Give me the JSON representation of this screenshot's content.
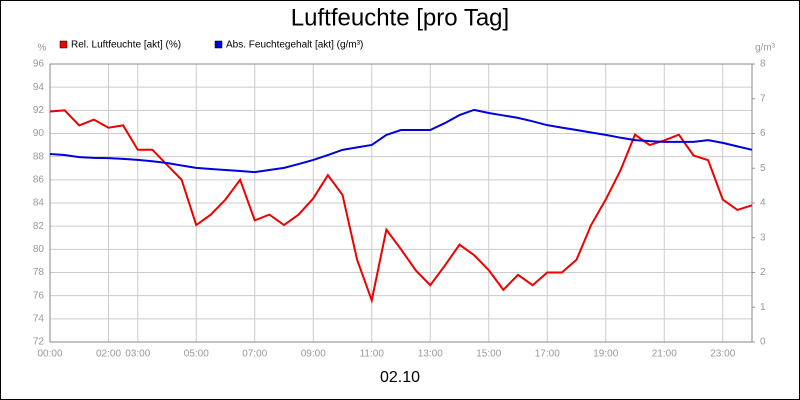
{
  "chart_data": {
    "type": "line",
    "title": "Luftfeuchte [pro Tag]",
    "xlabel": "02.10",
    "ylabel": "%",
    "y2label": "g/m³",
    "x": [
      0,
      0.5,
      1,
      1.5,
      2,
      2.5,
      3,
      3.5,
      4,
      4.5,
      5,
      5.5,
      6,
      6.5,
      7,
      7.5,
      8,
      8.5,
      9,
      9.5,
      10,
      10.5,
      11,
      11.5,
      12,
      12.5,
      13,
      13.5,
      14,
      14.5,
      15,
      15.5,
      16,
      16.5,
      17,
      17.5,
      18,
      18.5,
      19,
      19.5,
      20,
      20.5,
      21,
      21.5,
      22,
      22.5,
      23,
      23.5,
      24
    ],
    "xlim": [
      0,
      24
    ],
    "xticks": [
      {
        "value": 0,
        "label": "00:00"
      },
      {
        "value": 2,
        "label": "02:00"
      },
      {
        "value": 3,
        "label": "03:00"
      },
      {
        "value": 5,
        "label": "05:00"
      },
      {
        "value": 7,
        "label": "07:00"
      },
      {
        "value": 9,
        "label": "09:00"
      },
      {
        "value": 11,
        "label": "11:00"
      },
      {
        "value": 13,
        "label": "13:00"
      },
      {
        "value": 15,
        "label": "15:00"
      },
      {
        "value": 17,
        "label": "17:00"
      },
      {
        "value": 19,
        "label": "19:00"
      },
      {
        "value": 21,
        "label": "21:00"
      },
      {
        "value": 23,
        "label": "23:00"
      }
    ],
    "ylim": [
      72,
      96
    ],
    "yticks": [
      72,
      74,
      76,
      78,
      80,
      82,
      84,
      86,
      88,
      90,
      92,
      94,
      96
    ],
    "y2lim": [
      0,
      8
    ],
    "y2ticks": [
      0,
      1,
      2,
      3,
      4,
      5,
      6,
      7,
      8
    ],
    "grid": true,
    "series": [
      {
        "name": "Rel. Luftfeuchte [akt] (%)",
        "color": "#ee0000",
        "values": [
          91.9,
          92.0,
          90.7,
          91.2,
          90.5,
          90.7,
          88.6,
          88.6,
          87.3,
          86.0,
          82.1,
          83.0,
          84.3,
          86.0,
          82.5,
          83.0,
          82.1,
          83.0,
          84.4,
          86.4,
          84.7,
          79.1,
          75.6,
          81.7,
          80.0,
          78.2,
          76.9,
          78.6,
          80.4,
          79.5,
          78.2,
          76.5,
          77.8,
          76.9,
          78.0,
          78.0,
          79.1,
          82.1,
          84.3,
          86.8,
          89.9,
          89.0,
          89.4,
          89.9,
          88.1,
          87.7,
          84.3,
          83.4,
          83.8
        ]
      },
      {
        "name": "Abs. Feuchtegehalt [akt] (g/m³)",
        "color": "#0000dd",
        "axis": "y2",
        "values": [
          5.41,
          5.38,
          5.32,
          5.3,
          5.29,
          5.27,
          5.24,
          5.2,
          5.15,
          5.08,
          5.01,
          4.98,
          4.95,
          4.92,
          4.89,
          4.95,
          5.01,
          5.12,
          5.24,
          5.38,
          5.53,
          5.6,
          5.67,
          5.96,
          6.1,
          6.1,
          6.1,
          6.3,
          6.53,
          6.68,
          6.59,
          6.52,
          6.45,
          6.35,
          6.24,
          6.17,
          6.1,
          6.03,
          5.96,
          5.88,
          5.81,
          5.78,
          5.76,
          5.76,
          5.76,
          5.81,
          5.73,
          5.63,
          5.53
        ]
      }
    ]
  }
}
